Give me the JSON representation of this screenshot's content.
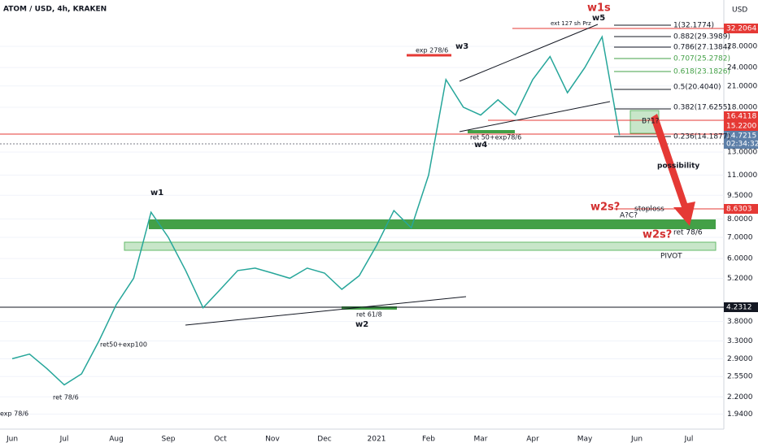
{
  "header": {
    "title": "ATOM / USD, 4h, KRAKEN",
    "currency": "USD"
  },
  "chart_data": {
    "type": "line",
    "log_scale": true,
    "color": "#26a69a",
    "categories": [
      "Jun",
      null,
      null,
      "Jul",
      null,
      null,
      "Aug",
      null,
      null,
      "Sep",
      null,
      null,
      "Oct",
      null,
      null,
      "Nov",
      null,
      null,
      "Dec",
      null,
      null,
      "2021",
      null,
      null,
      "Feb",
      null,
      null,
      "Mar",
      null,
      null,
      "Apr",
      null,
      null,
      "May",
      null,
      null,
      "Jun",
      null,
      null,
      "Jul",
      null,
      null
    ],
    "values": [
      2.9,
      3.0,
      2.7,
      2.4,
      2.6,
      3.3,
      4.3,
      5.2,
      8.4,
      7.0,
      5.5,
      4.2,
      4.8,
      5.5,
      5.6,
      5.4,
      5.2,
      5.6,
      5.4,
      4.8,
      5.3,
      6.6,
      8.5,
      7.5,
      11,
      22,
      18,
      17,
      19,
      17,
      22,
      26,
      20,
      24,
      30,
      14.7,
      null,
      null,
      null,
      null,
      null,
      null
    ],
    "ylim": [
      1.72,
      39.2
    ],
    "yticks": [
      {
        "value": 1.94,
        "label": "1.9400"
      },
      {
        "value": 2.2,
        "label": "2.2000"
      },
      {
        "value": 2.55,
        "label": "2.5500"
      },
      {
        "value": 2.9,
        "label": "2.9000"
      },
      {
        "value": 3.3,
        "label": "3.3000"
      },
      {
        "value": 3.8,
        "label": "3.8000"
      },
      {
        "value": 5.2,
        "label": "5.2000"
      },
      {
        "value": 6,
        "label": "6.0000"
      },
      {
        "value": 7,
        "label": "7.0000"
      },
      {
        "value": 8,
        "label": "8.0000"
      },
      {
        "value": 9.5,
        "label": "9.5000"
      },
      {
        "value": 11,
        "label": "11.0000"
      },
      {
        "value": 13,
        "label": "13.0000"
      },
      {
        "value": 18,
        "label": "18.0000"
      },
      {
        "value": 21,
        "label": "21.0000"
      },
      {
        "value": 24,
        "label": "24.0000"
      },
      {
        "value": 28,
        "label": "28.0000"
      }
    ],
    "price_tags": [
      "32.2064",
      "16.4118",
      "15.2200",
      "14.7215",
      "02:34:32",
      "8.6303",
      "4.2312"
    ],
    "fib_levels": [
      "1(32.1774)",
      "0.882(29.3989)",
      "0.786(27.1384)",
      "0.707(25.2782)",
      "0.618(23.1826)",
      "0.5(20.4040)",
      "0.382(17.6255)",
      "0.236(14.1877)"
    ],
    "annotations": [
      "w1s",
      "w5",
      "w3",
      "w1",
      "w2",
      "w4",
      "w2s?",
      "w2s?",
      "B?1?",
      "possibility",
      "stoploss",
      "A?C?",
      "ret 78/6",
      "PIVOT",
      "ret 61/8",
      "ret50+exp100",
      "ret 78/6",
      "exp 78/6",
      "exp 278/6",
      "ret 50+exp78/6",
      "ext 127 sh Prz"
    ]
  }
}
